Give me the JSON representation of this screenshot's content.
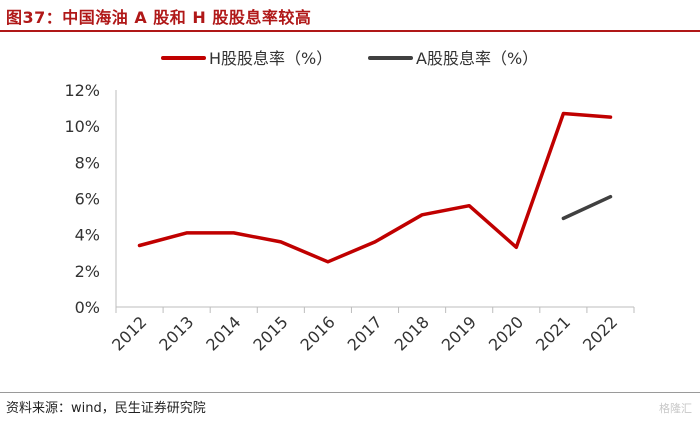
{
  "figure_title": "图37：中国海油 A 股和 H 股股息率较高",
  "source_note": "资料来源：wind，民生证券研究院",
  "watermark": "格隆汇",
  "chart_data": {
    "type": "line",
    "categories": [
      "2012",
      "2013",
      "2014",
      "2015",
      "2016",
      "2017",
      "2018",
      "2019",
      "2020",
      "2021",
      "2022"
    ],
    "ylim": [
      0,
      12
    ],
    "yticks": [
      0,
      2,
      4,
      6,
      8,
      10,
      12
    ],
    "ytick_labels": [
      "0%",
      "2%",
      "4%",
      "6%",
      "8%",
      "10%",
      "12%"
    ],
    "xlabel": "",
    "ylabel": "",
    "grid": false,
    "legend_position": "top",
    "series": [
      {
        "name": "H股股息率（%）",
        "color": "#c00000",
        "values": [
          3.4,
          4.1,
          4.1,
          3.6,
          2.5,
          3.6,
          5.1,
          5.6,
          3.3,
          10.7,
          10.5
        ]
      },
      {
        "name": "A股股息率（%）",
        "color": "#404040",
        "values": [
          null,
          null,
          null,
          null,
          null,
          null,
          null,
          null,
          null,
          4.9,
          6.1
        ]
      }
    ]
  }
}
